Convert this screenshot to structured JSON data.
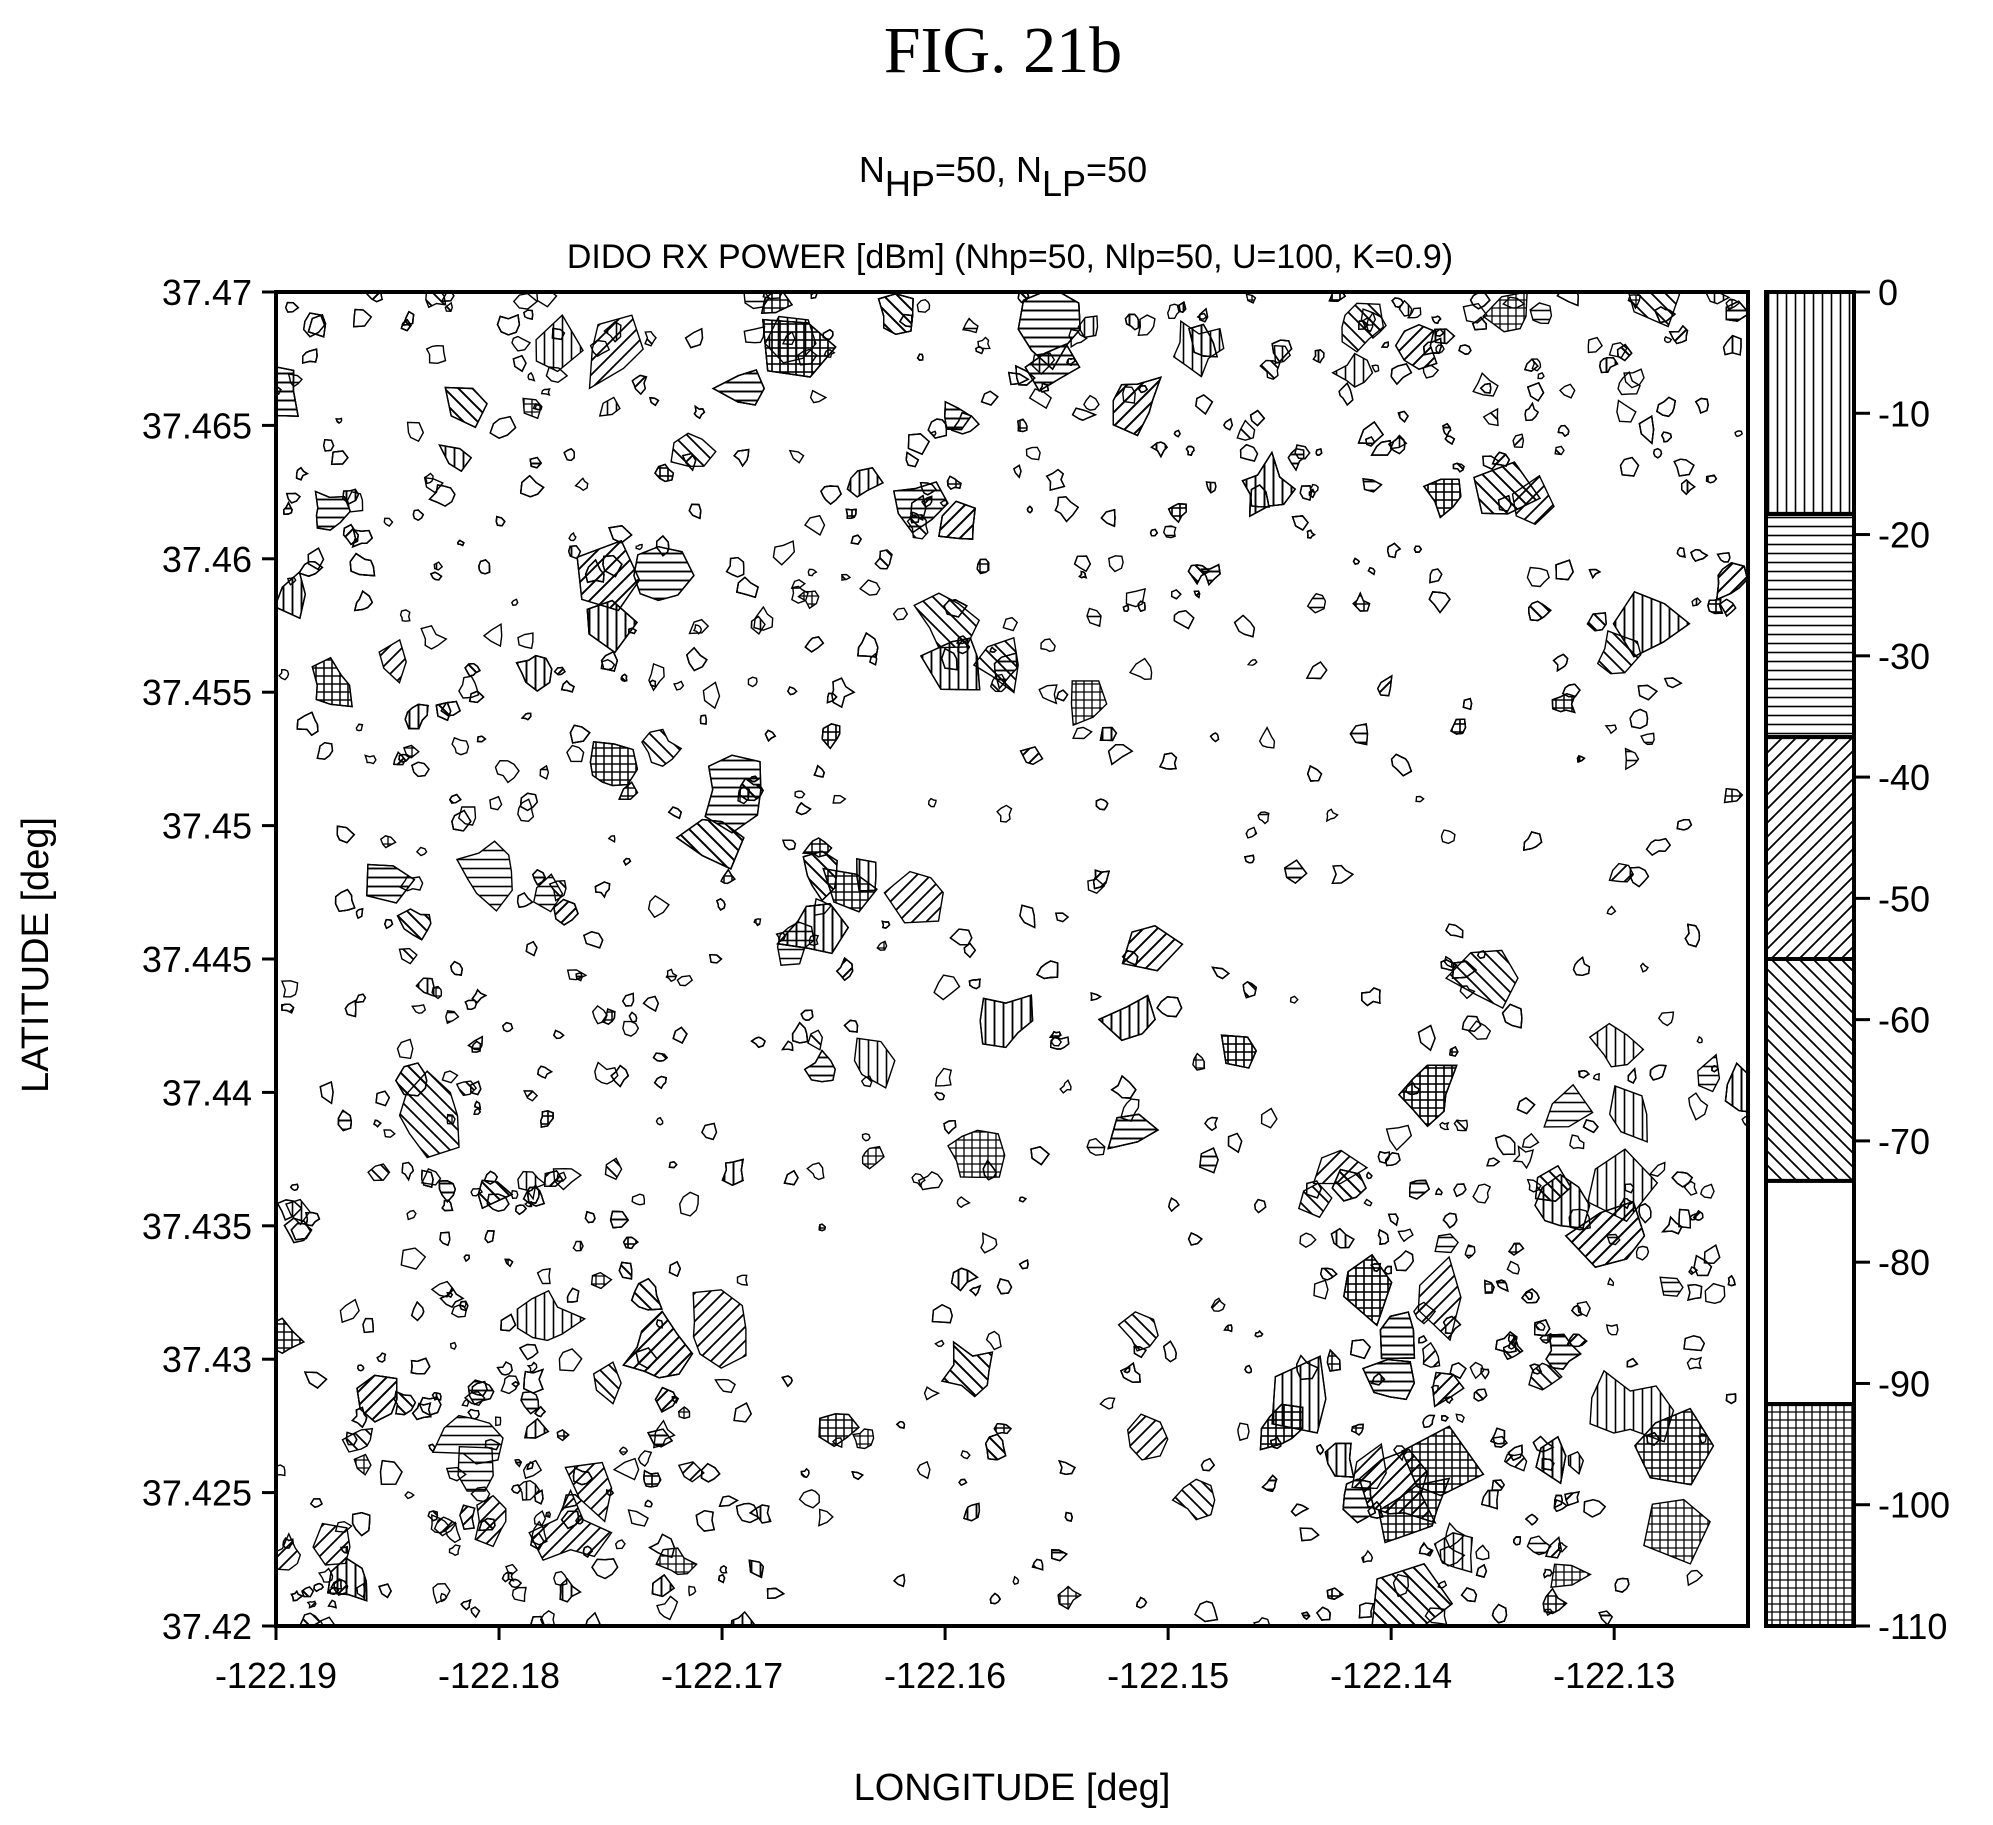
{
  "figure_label": "FIG. 21b",
  "subtitle": {
    "n_hp_prefix": "N",
    "n_hp_sub": "HP",
    "n_hp_val": "=50, N",
    "n_lp_sub": "LP",
    "n_lp_val": "=50"
  },
  "chart_data": {
    "type": "heatmap",
    "title": "DIDO RX POWER [dBm] (Nhp=50, Nlp=50, U=100, K=0.9)",
    "xlabel": "LONGITUDE [deg]",
    "ylabel": "LATITUDE [deg]",
    "xlim": [
      -122.19,
      -122.124
    ],
    "ylim": [
      37.42,
      37.47
    ],
    "x_ticks": [
      -122.19,
      -122.18,
      -122.17,
      -122.16,
      -122.15,
      -122.14,
      -122.13
    ],
    "x_tick_labels": [
      "-122.19",
      "-122.18",
      "-122.17",
      "-122.16",
      "-122.15",
      "-122.14",
      "-122.13"
    ],
    "y_ticks": [
      37.42,
      37.425,
      37.43,
      37.435,
      37.44,
      37.445,
      37.45,
      37.455,
      37.46,
      37.465,
      37.47
    ],
    "y_tick_labels": [
      "37.42",
      "37.425",
      "37.43",
      "37.435",
      "37.44",
      "37.445",
      "37.45",
      "37.455",
      "37.46",
      "37.465",
      "37.47"
    ],
    "colorbar": {
      "range": [
        -110,
        0
      ],
      "ticks": [
        0,
        -10,
        -20,
        -30,
        -40,
        -50,
        -60,
        -70,
        -80,
        -90,
        -100,
        -110
      ],
      "tick_labels": [
        "0",
        "-10",
        "-20",
        "-30",
        "-40",
        "-50",
        "-60",
        "-70",
        "-80",
        "-90",
        "-100",
        "-110"
      ],
      "bands": [
        {
          "from": 0,
          "to": -18.3,
          "pattern": "vertical-lines"
        },
        {
          "from": -18.3,
          "to": -36.7,
          "pattern": "horizontal-lines"
        },
        {
          "from": -36.7,
          "to": -55,
          "pattern": "diagonal-lines-up"
        },
        {
          "from": -55,
          "to": -73.3,
          "pattern": "diagonal-lines-down"
        },
        {
          "from": -73.3,
          "to": -91.7,
          "pattern": "blank"
        },
        {
          "from": -91.7,
          "to": -110,
          "pattern": "crosshatch"
        }
      ]
    },
    "grid": false,
    "legend": "colorbar-right"
  }
}
